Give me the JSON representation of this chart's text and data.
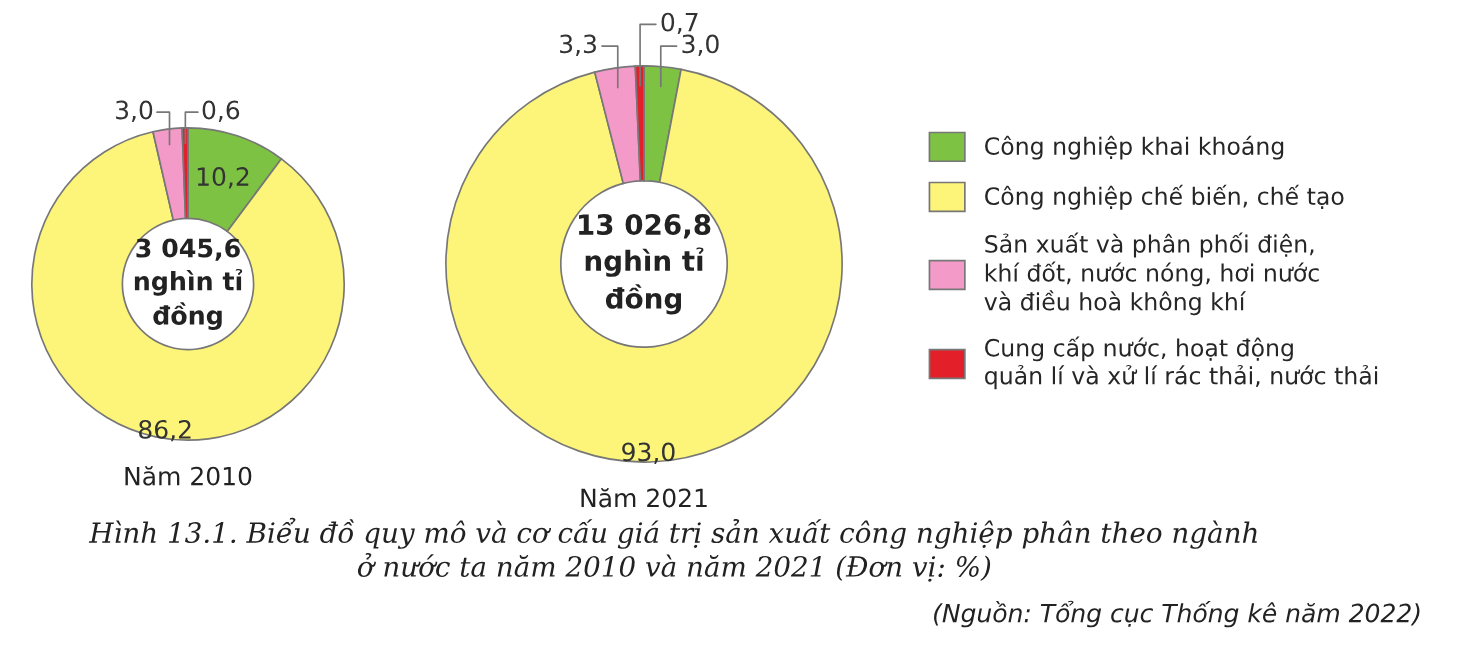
{
  "chart_data": [
    {
      "type": "donut",
      "title": "Năm 2010",
      "categories": [
        "Công nghiệp khai khoáng",
        "Công nghiệp chế biến, chế tạo",
        "Sản xuất và phân phối điện,\nkhí đốt, nước nóng, hơi nước\nvà điều hoà không khí",
        "Cung cấp nước, hoạt động\nquản lí và xử lí rác thải, nước thải"
      ],
      "values": [
        10.2,
        86.2,
        3.0,
        0.6
      ],
      "colors": [
        "#7dc242",
        "#fdf579",
        "#f49ac8",
        "#e3202a"
      ],
      "value_labels": [
        "10,2",
        "86,2",
        "3,0",
        "0,6"
      ],
      "legend": "right",
      "annotations": [
        "3 045,6\nnghìn tỉ\nđồng",
        "Hình 13.1. Biểu đồ quy mô và cơ cấu giá trị sản xuất công nghiệp phân theo ngành\nở nước ta năm 2010 và năm 2021 (Đơn vị: %)",
        "(Nguồn: Tổng cục Thống kê năm 2022)"
      ]
    },
    {
      "type": "donut",
      "title": "Năm 2021",
      "categories": [
        null,
        null,
        null,
        null
      ],
      "values": [
        3.0,
        93.0,
        3.3,
        0.7
      ],
      "colors": [
        "#7dc242",
        "#fdf579",
        "#f49ac8",
        "#e3202a"
      ],
      "value_labels": [
        "3,0",
        "93,0",
        "3,3",
        "0,7"
      ],
      "annotations": [
        "13 026,8\nnghìn tỉ\nđồng"
      ]
    }
  ]
}
